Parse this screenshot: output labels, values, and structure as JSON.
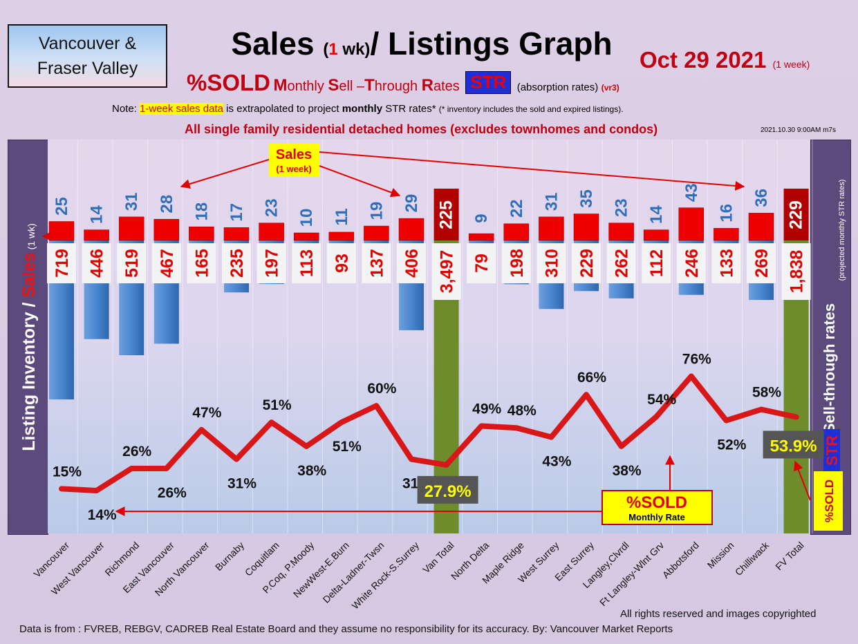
{
  "header": {
    "region_line1": "Vancouver &",
    "region_line2": "Fraser Valley",
    "title_sales": "Sales",
    "title_open": "(",
    "title_one": "1",
    "title_wk": " wk)",
    "title_rest": "/ Listings Graph",
    "date": "Oct 29  2021",
    "date_week": "(1 week)",
    "sold_label": "%SOLD",
    "sub_m": "M",
    "sub_onthly": "onthly ",
    "sub_s": "S",
    "sub_ell": "ell –",
    "sub_t": "T",
    "sub_hrough": "hrough ",
    "sub_r": "R",
    "sub_ates": "ates",
    "str_badge": "STR",
    "absorption": "(absorption rates)",
    "version": "(vr3)",
    "note_prefix": "Note: ",
    "note_highlight": "1-week sales data",
    "note_mid": " is extrapolated to project ",
    "note_bold": "monthly",
    "note_suffix": " STR rates*",
    "note_small": "(* inventory includes the sold and expired listings).",
    "subhead": "All single family residential detached homes (excludes townhomes and condos)",
    "timestamp": "2021.10.30 9:00AM m7s"
  },
  "side_labels": {
    "left_inventory": "Listing Inventory ",
    "left_slash": "/",
    "left_sales": " Sales",
    "left_wk": " (1 wk)",
    "right_rates": "Sell-through rates",
    "right_projected": "(projected monthly STR rates)",
    "right_str": "STR",
    "right_sold": "%SOLD"
  },
  "annotations": {
    "sales_callout": "Sales",
    "sales_callout_sub": "(1 week)",
    "sold_callout": "%SOLD",
    "sold_callout_sub": "Monthly Rate"
  },
  "footer": {
    "rights": "All rights reserved and  images copyrighted",
    "source": "Data is from : FVREB, REBGV, CADREB Real Estate Board and they assume no responsibility for its accuracy. By: Vancouver Market Reports"
  },
  "chart_data": {
    "type": "bar",
    "categories": [
      "Vancouver",
      "West Vancouver",
      "Richmond",
      "East Vancouver",
      "North Vancouver",
      "Burnaby",
      "Coquitlam",
      "P.Coq, P.Moody",
      "NewWest-E.Burn",
      "Delta-Ladner-Twsn",
      "White Rock-S.Surrey",
      "Van Total",
      "North Delta",
      "Maple Ridge",
      "West Surrey",
      "East Surrey",
      "Langley,Clvrdl",
      "Ft Langley-Wlnt Grv",
      "Abbotsford",
      "Mission",
      "Chilliwack",
      "FV Total"
    ],
    "sales_labels": [
      "25",
      "14",
      "31",
      "28",
      "18",
      "17",
      "23",
      "10",
      "11",
      "19",
      "29",
      "225",
      "9",
      "22",
      "31",
      "35",
      "23",
      "14",
      "43",
      "16",
      "36",
      "229"
    ],
    "sales": [
      25,
      14,
      31,
      28,
      18,
      17,
      23,
      10,
      11,
      19,
      29,
      225,
      9,
      22,
      31,
      35,
      23,
      14,
      43,
      16,
      36,
      229
    ],
    "inventory_labels": [
      "719",
      "446",
      "519",
      "467",
      "165",
      "235",
      "197",
      "113",
      "93",
      "137",
      "406",
      "3,497",
      "79",
      "198",
      "310",
      "229",
      "262",
      "112",
      "246",
      "133",
      "269",
      "1,838"
    ],
    "inventory": [
      719,
      446,
      519,
      467,
      165,
      235,
      197,
      113,
      93,
      137,
      406,
      3497,
      79,
      198,
      310,
      229,
      262,
      112,
      246,
      133,
      269,
      1838
    ],
    "sold_labels": [
      "15%",
      "14%",
      "26%",
      "26%",
      "47%",
      "31%",
      "51%",
      "38%",
      "51%",
      "60%",
      "31%",
      "27.9%",
      "49%",
      "48%",
      "43%",
      "66%",
      "38%",
      "54%",
      "76%",
      "52%",
      "58%",
      "53.9%"
    ],
    "sold_pct": [
      15,
      14,
      26,
      26,
      47,
      31,
      51,
      38,
      51,
      60,
      31,
      27.9,
      49,
      48,
      43,
      66,
      38,
      54,
      76,
      52,
      58,
      53.9
    ],
    "totals": [
      "Van Total",
      "FV Total"
    ],
    "colors": {
      "sales": "#ee0000",
      "inventory": "#4a86cf",
      "total_bar": "#6e8c2c",
      "total_sales": "#b00000",
      "line": "#d81818",
      "label_blue": "#2f6fb8",
      "label_red": "#e00000"
    }
  }
}
